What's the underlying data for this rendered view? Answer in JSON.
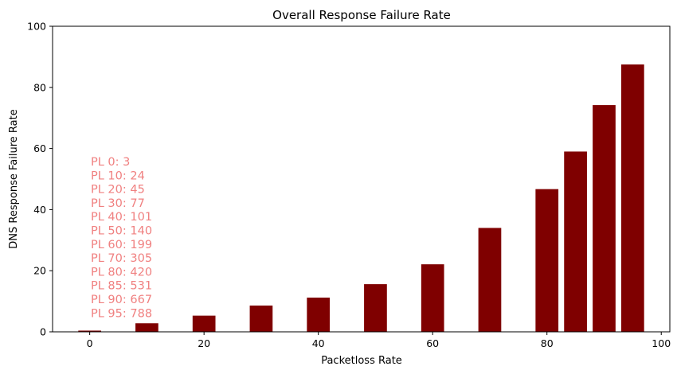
{
  "chart_data": {
    "type": "bar",
    "title": "Overall Response Failure Rate",
    "xlabel": "Packetloss Rate",
    "ylabel": "DNS Response Failure Rate",
    "x": [
      0,
      10,
      20,
      30,
      40,
      50,
      60,
      70,
      80,
      85,
      90,
      95
    ],
    "values": [
      0.4,
      2.8,
      5.3,
      8.6,
      11.2,
      15.6,
      22.1,
      34.0,
      46.7,
      59.0,
      74.2,
      87.5
    ],
    "bar_width": 4,
    "xlim": [
      -6.5,
      101.5
    ],
    "ylim": [
      0,
      100
    ],
    "xticks": [
      0,
      20,
      40,
      60,
      80,
      100
    ],
    "yticks": [
      0,
      20,
      40,
      60,
      80,
      100
    ],
    "grid": false,
    "bar_color": "#7f0000",
    "annotation_color": "#f08080",
    "annotations": [
      "PL 0: 3",
      "PL 10: 24",
      "PL 20: 45",
      "PL 30: 77",
      "PL 40: 101",
      "PL 50: 140",
      "PL 60: 199",
      "PL 70: 305",
      "PL 80: 420",
      "PL 85: 531",
      "PL 90: 667",
      "PL 95: 788"
    ]
  }
}
